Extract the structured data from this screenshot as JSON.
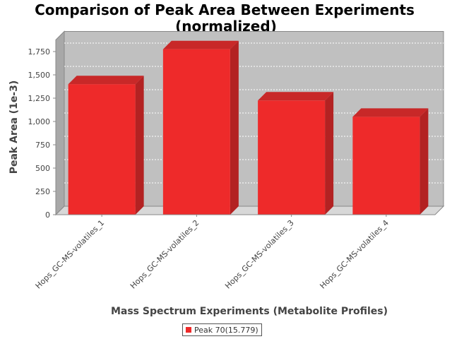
{
  "chart_data": {
    "type": "bar",
    "title": "Comparison of Peak Area Between Experiments",
    "subtitle": "(normalized)",
    "xlabel": "Mass Spectrum Experiments (Metabolite Profiles)",
    "ylabel": "Peak Area (1e-3)",
    "categories": [
      "Hops_GC-MS-volatiles_1",
      "Hops_GC-MS-volatiles_2",
      "Hops_GC-MS-volatiles_3",
      "Hops_GC-MS-volatiles_4"
    ],
    "series": [
      {
        "name": "Peak 70(15.779)",
        "color": "#ee2a2a",
        "values": [
          1400,
          1775,
          1225,
          1050
        ]
      }
    ],
    "ylim": [
      0,
      1875
    ],
    "yticks": [
      0,
      250,
      500,
      750,
      1000,
      1250,
      1500,
      1750
    ],
    "ytick_labels": [
      "0",
      "250",
      "500",
      "750",
      "1,000",
      "1,250",
      "1,500",
      "1,750"
    ],
    "grid": true,
    "legend_position": "bottom",
    "plot_background": "#c0c0c0"
  }
}
